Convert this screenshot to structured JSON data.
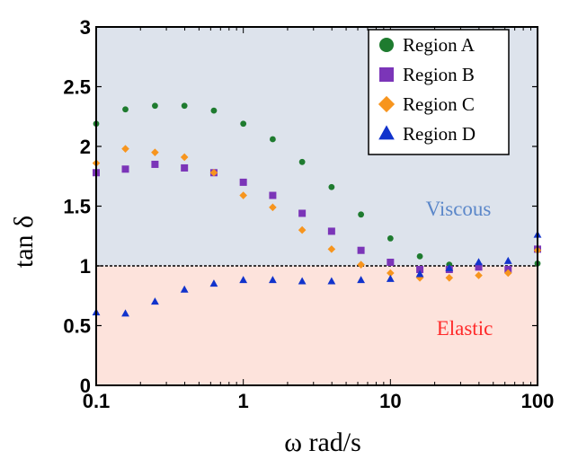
{
  "chart_data": {
    "type": "scatter",
    "xscale": "log",
    "xlabel": "ω rad/s",
    "ylabel": "tan δ",
    "xlim": [
      0.1,
      100
    ],
    "ylim": [
      0,
      3
    ],
    "xticks": [
      "0.1",
      "1",
      "10",
      "100"
    ],
    "yticks": [
      "0",
      "0.5",
      "1",
      "1.5",
      "2",
      "2.5",
      "3"
    ],
    "grid": false,
    "legend_position": "top-right",
    "reference_line": 1,
    "regions": {
      "upper": {
        "label": "Viscous",
        "color": "#dde3ec",
        "text_color": "#5b87c9"
      },
      "lower": {
        "label": "Elastic",
        "color": "#fde3dc",
        "text_color": "#ff2a2a"
      }
    },
    "x": [
      0.1,
      0.158,
      0.251,
      0.398,
      0.631,
      1,
      1.585,
      2.512,
      3.981,
      6.31,
      10,
      15.85,
      25.12,
      39.81,
      63.1,
      100
    ],
    "series": [
      {
        "name": "Region A",
        "marker": "circle",
        "color": "#1e7b2f",
        "values": [
          2.19,
          2.31,
          2.34,
          2.34,
          2.3,
          2.19,
          2.06,
          1.87,
          1.66,
          1.43,
          1.23,
          1.08,
          1.01,
          1.0,
          0.96,
          1.02
        ]
      },
      {
        "name": "Region B",
        "marker": "square",
        "color": "#7b35b8",
        "values": [
          1.78,
          1.81,
          1.85,
          1.82,
          1.78,
          1.7,
          1.59,
          1.44,
          1.29,
          1.13,
          1.03,
          0.97,
          0.97,
          0.99,
          0.97,
          1.14
        ]
      },
      {
        "name": "Region C",
        "marker": "diamond",
        "color": "#f7951e",
        "values": [
          1.86,
          1.98,
          1.95,
          1.91,
          1.78,
          1.59,
          1.49,
          1.3,
          1.14,
          1.01,
          0.94,
          0.9,
          0.9,
          0.92,
          0.94,
          1.13
        ]
      },
      {
        "name": "Region D",
        "marker": "triangle",
        "color": "#1133cc",
        "values": [
          0.61,
          0.6,
          0.7,
          0.8,
          0.85,
          0.88,
          0.88,
          0.87,
          0.87,
          0.88,
          0.89,
          0.93,
          0.98,
          1.03,
          1.04,
          1.26
        ]
      }
    ]
  }
}
